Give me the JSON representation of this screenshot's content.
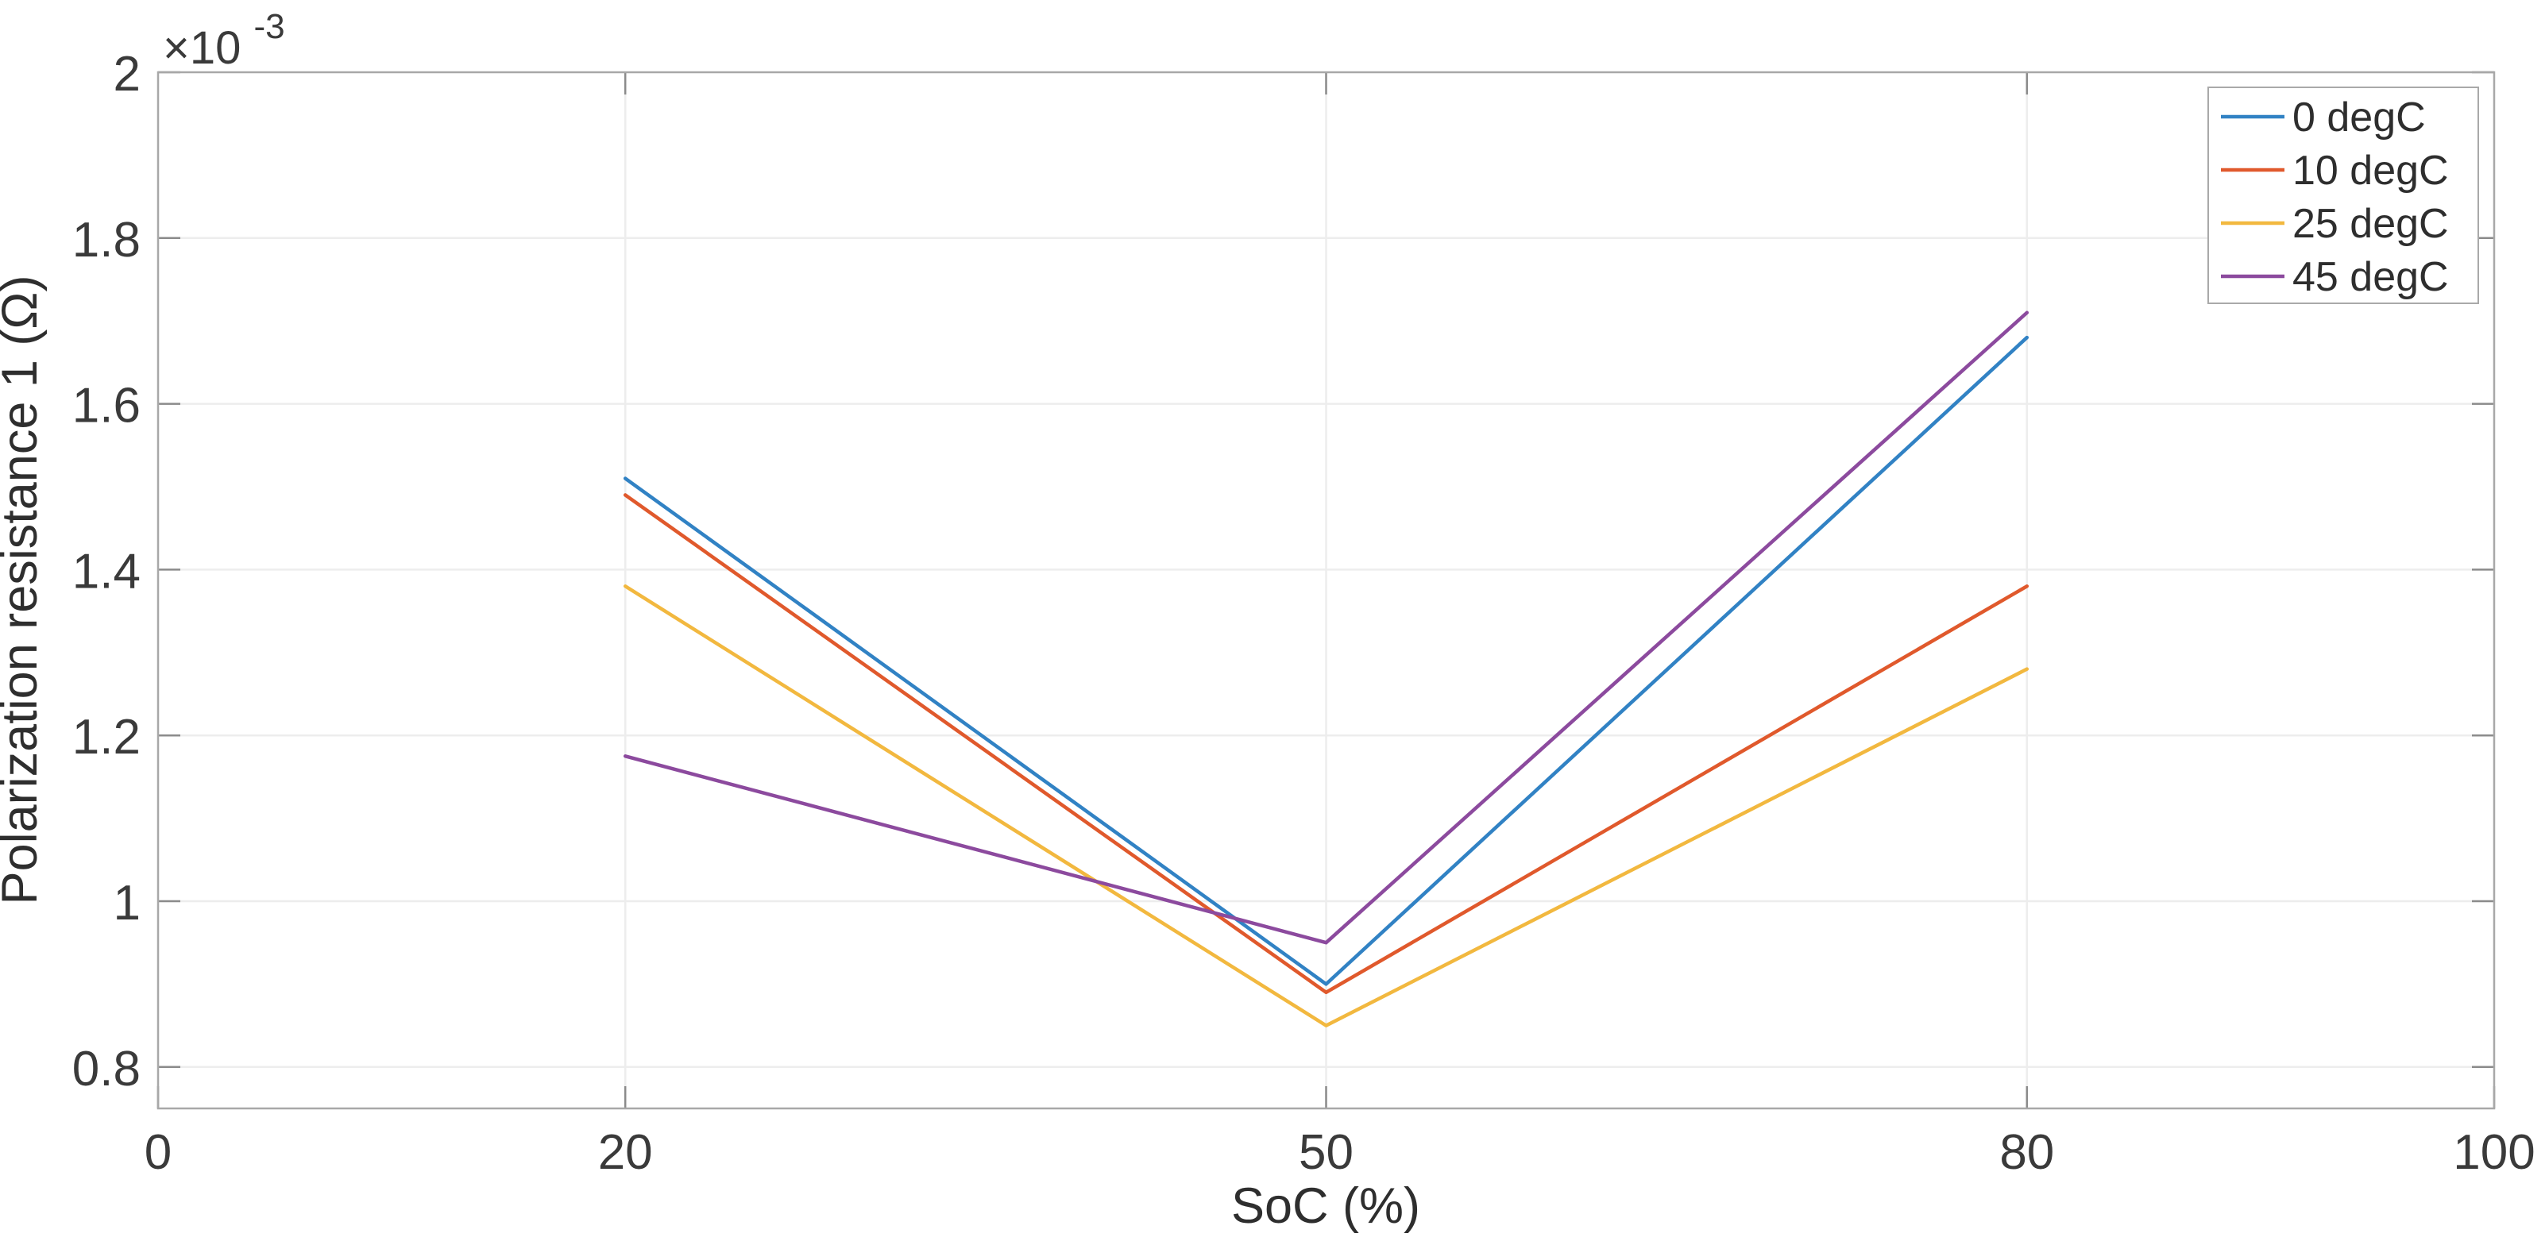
{
  "figure": {
    "background": "#ffffff"
  },
  "chart_data": {
    "type": "line",
    "title": "",
    "xlabel": "SoC (%)",
    "ylabel": "Polarization resistance 1 (Ω)",
    "y_axis_offset": {
      "base": "×10",
      "exponent": "-3"
    },
    "unit_scale": "1e-3",
    "x": [
      20,
      50,
      80
    ],
    "series": [
      {
        "name": "0 degC",
        "color": "#3182C4",
        "values_e3": [
          1.51,
          0.9,
          1.68
        ]
      },
      {
        "name": "10 degC",
        "color": "#E0592C",
        "values_e3": [
          1.49,
          0.89,
          1.38
        ]
      },
      {
        "name": "25 degC",
        "color": "#F2B83F",
        "values_e3": [
          1.38,
          0.85,
          1.28
        ]
      },
      {
        "name": "45 degC",
        "color": "#8C4A9E",
        "values_e3": [
          1.175,
          0.95,
          1.71
        ]
      }
    ],
    "xlim": [
      0,
      100
    ],
    "ylim_e3": [
      0.75,
      2
    ],
    "xticks": [
      0,
      20,
      50,
      80,
      100
    ],
    "xtick_labels": [
      "0",
      "20",
      "50",
      "80",
      "100"
    ],
    "yticks_e3": [
      0.8,
      1,
      1.2,
      1.4,
      1.6,
      1.8,
      2
    ],
    "ytick_labels": [
      "0.8",
      "1",
      "1.2",
      "1.4",
      "1.6",
      "1.8",
      "2"
    ],
    "grid": true,
    "legend": {
      "position": "top-right",
      "entries": [
        "0 degC",
        "10 degC",
        "25 degC",
        "45 degC"
      ]
    },
    "colors": {
      "axis_box": "#a8a8a8",
      "tick_mark": "#8b8b8b",
      "grid_line": "#ededed",
      "text": "#3a3a3a",
      "legend_border": "#a9a9a9",
      "legend_background": "#ffffff"
    }
  }
}
